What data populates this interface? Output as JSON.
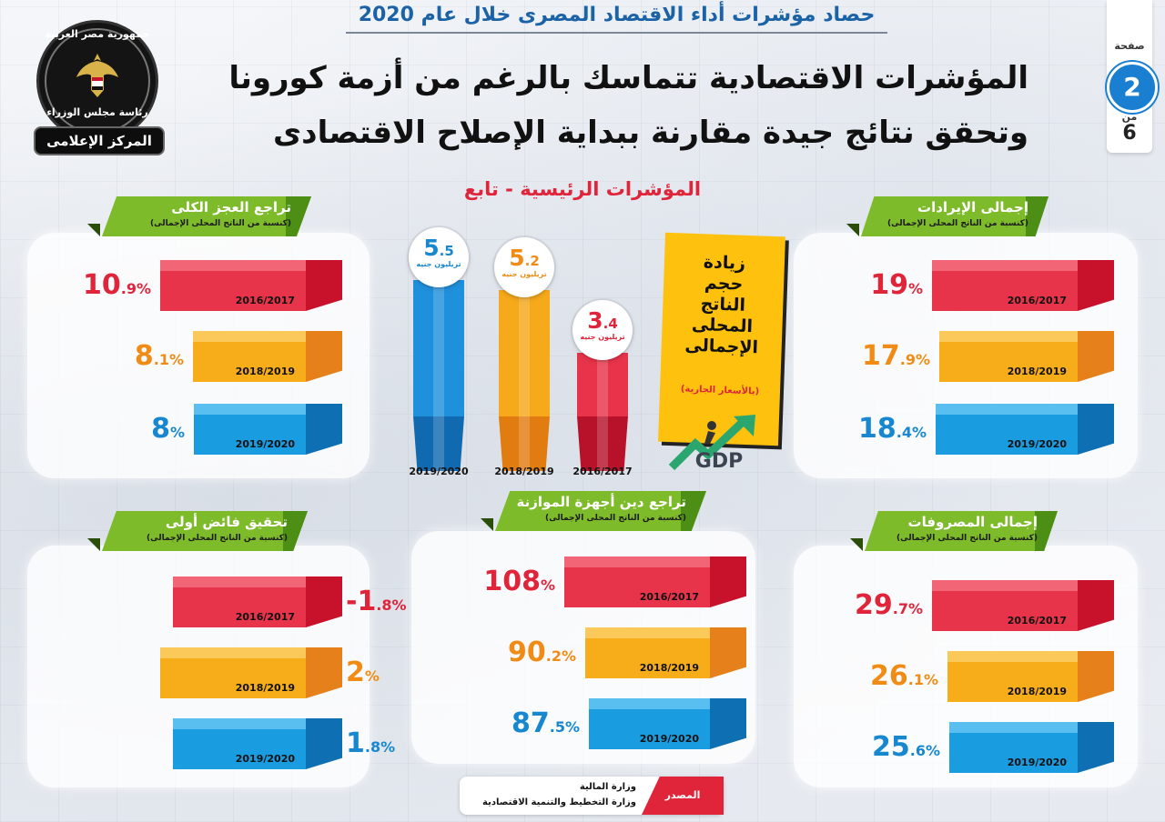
{
  "header": {
    "top_title": "حصاد مؤشرات أداء الاقتصاد المصرى خلال عام 2020",
    "headline_line1": "المؤشرات الاقتصادية تتماسك بالرغم من أزمة كورونا",
    "headline_line2": "وتحقق نتائج جيدة مقارنة ببداية الإصلاح الاقتصادى",
    "subheading": "المؤشرات الرئيسية - تابع"
  },
  "logo": {
    "top_text": "جمهورية مصر العربية",
    "middle_text": "رئاسة مجلس الوزراء",
    "ribbon_text": "المركز الإعلامى"
  },
  "pager": {
    "page_label": "صفحة",
    "current": "2",
    "of_label": "من",
    "total": "6"
  },
  "colors": {
    "red": "#e0243a",
    "orange": "#f08c15",
    "blue": "#1787d0",
    "green": "#7dbb2a",
    "gdp_yellow": "#fec20e"
  },
  "gdp_box": {
    "lines": [
      "زيادة",
      "حجم",
      "الناتج",
      "المحلى",
      "الإجمالى"
    ],
    "note": "(بالأسعار الجارية)",
    "icon": "gdp-growth-icon",
    "icon_text": "GDP"
  },
  "source": {
    "label": "المصدر",
    "line1": "وزارة المالية",
    "line2": "وزارة التخطيط والتنمية الاقتصادية"
  },
  "chart_data": [
    {
      "type": "bar",
      "title": "تراجع العجز الكلى",
      "subtitle": "(كنسبة من الناتج المحلى الإجمالى)",
      "unit": "%",
      "categories": [
        "2016/2017",
        "2018/2019",
        "2019/2020"
      ],
      "values": [
        10.9,
        8.1,
        8
      ],
      "labels": [
        "10.9",
        "8.1",
        "8"
      ]
    },
    {
      "type": "bar",
      "title": "إجمالى الإيرادات",
      "subtitle": "(كنسبة من الناتج المحلى الإجمالى)",
      "unit": "%",
      "categories": [
        "2016/2017",
        "2018/2019",
        "2019/2020"
      ],
      "values": [
        19,
        17.9,
        18.4
      ],
      "labels": [
        "19",
        "17.9",
        "18.4"
      ]
    },
    {
      "type": "bar",
      "title": "تحقيق فائض أولى",
      "subtitle": "(كنسبة من الناتج المحلى الإجمالى)",
      "unit": "%",
      "categories": [
        "2016/2017",
        "2018/2019",
        "2019/2020"
      ],
      "values": [
        -1.8,
        2,
        1.8
      ],
      "labels": [
        "-1.8",
        "2",
        "1.8"
      ]
    },
    {
      "type": "bar",
      "title": "تراجع دين أجهزة الموازنة",
      "subtitle": "(كنسبة من الناتج المحلى الإجمالى)",
      "unit": "%",
      "categories": [
        "2016/2017",
        "2018/2019",
        "2019/2020"
      ],
      "values": [
        108,
        90.2,
        87.5
      ],
      "labels": [
        "108",
        "90.2",
        "87.5"
      ]
    },
    {
      "type": "bar",
      "title": "إجمالى المصروفات",
      "subtitle": "(كنسبة من الناتج المحلى الإجمالى)",
      "unit": "%",
      "categories": [
        "2016/2017",
        "2018/2019",
        "2019/2020"
      ],
      "values": [
        29.7,
        26.1,
        25.6
      ],
      "labels": [
        "29.7",
        "26.1",
        "25.6"
      ]
    },
    {
      "type": "bar",
      "title": "زيادة حجم الناتج المحلى الإجمالى",
      "subtitle": "(بالأسعار الجارية)",
      "unit": "تريليون جنيه",
      "categories": [
        "2019/2020",
        "2018/2019",
        "2016/2017"
      ],
      "values": [
        5.5,
        5.2,
        3.4
      ],
      "labels": [
        "5.5",
        "5.2",
        "3.4"
      ]
    }
  ]
}
